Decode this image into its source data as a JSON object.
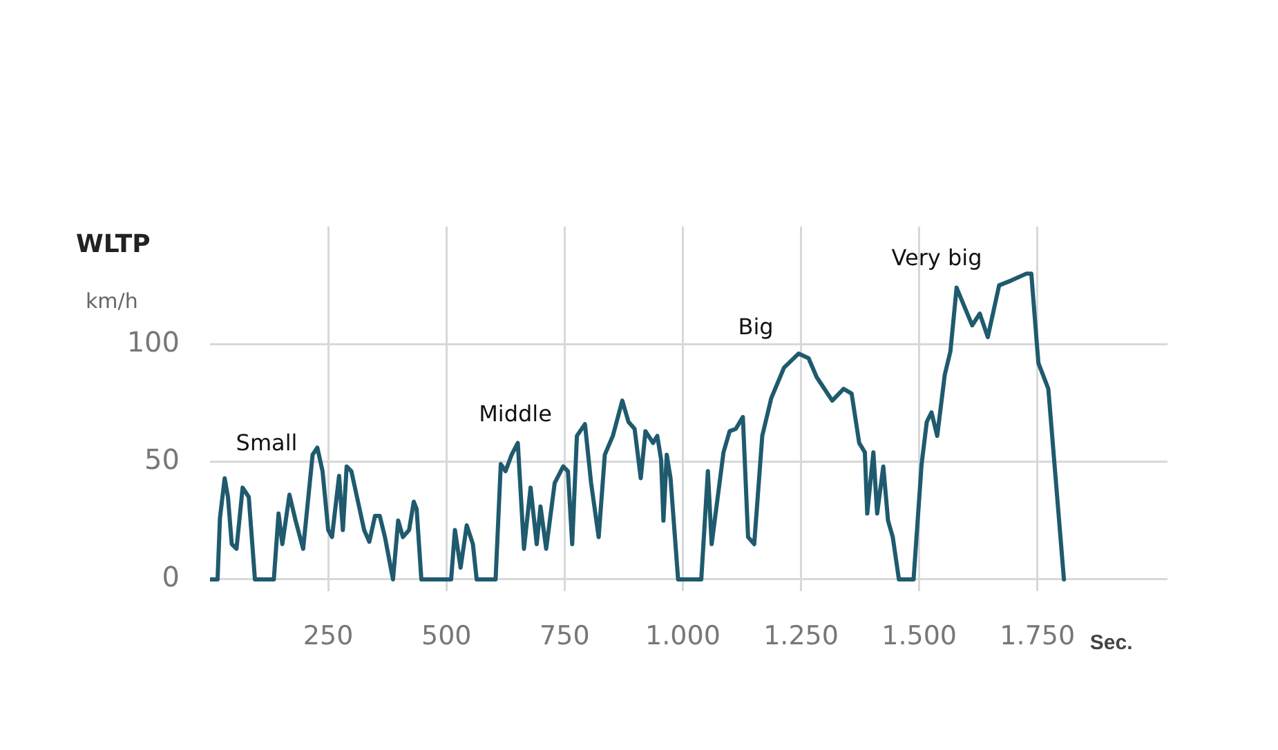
{
  "chart_data": {
    "type": "line",
    "title": "WLTP",
    "ylabel": "km/h",
    "xlabel": "Sec.",
    "x": [
      0,
      16,
      21,
      31,
      38,
      46,
      56,
      69,
      82,
      95,
      135,
      145,
      153,
      168,
      181,
      197,
      217,
      227,
      238,
      250,
      258,
      273,
      281,
      289,
      299,
      326,
      337,
      349,
      359,
      370,
      387,
      398,
      408,
      421,
      431,
      437,
      447,
      510,
      518,
      530,
      543,
      556,
      564,
      604,
      615,
      625,
      638,
      651,
      664,
      678,
      691,
      699,
      711,
      729,
      747,
      757,
      766,
      776,
      793,
      806,
      822,
      835,
      852,
      872,
      885,
      898,
      911,
      921,
      937,
      946,
      954,
      959,
      966,
      974,
      990,
      1039,
      1053,
      1061,
      1086,
      1099,
      1112,
      1127,
      1138,
      1151,
      1168,
      1187,
      1214,
      1245,
      1266,
      1283,
      1316,
      1340,
      1357,
      1373,
      1385,
      1390,
      1403,
      1411,
      1424,
      1434,
      1444,
      1457,
      1488,
      1505,
      1516,
      1526,
      1538,
      1554,
      1566,
      1579,
      1612,
      1628,
      1645,
      1669,
      1694,
      1727,
      1737,
      1752,
      1773,
      1806
    ],
    "values": [
      0,
      0,
      26,
      43,
      35,
      15,
      13,
      39,
      35,
      0,
      0,
      28,
      15,
      36,
      25,
      13,
      53,
      56,
      46,
      21,
      18,
      44,
      21,
      48,
      46,
      21,
      16,
      27,
      27,
      18,
      0,
      25,
      18,
      21,
      33,
      30,
      0,
      0,
      21,
      5,
      23,
      15,
      0,
      0,
      49,
      46,
      53,
      58,
      13,
      39,
      15,
      31,
      13,
      41,
      48,
      46,
      15,
      61,
      66,
      41,
      18,
      53,
      61,
      76,
      67,
      64,
      43,
      63,
      58,
      61,
      51,
      25,
      53,
      43,
      0,
      0,
      46,
      15,
      54,
      63,
      64,
      69,
      18,
      15,
      61,
      77,
      90,
      96,
      94,
      86,
      76,
      81,
      79,
      58,
      54,
      28,
      54,
      28,
      48,
      25,
      18,
      0,
      0,
      49,
      67,
      71,
      61,
      87,
      97,
      124,
      108,
      113,
      103,
      125,
      127,
      130,
      130,
      92,
      81,
      0
    ],
    "color": "#1f5a6e",
    "xlim": [
      0,
      2025
    ],
    "ylim": [
      -5,
      150
    ],
    "xticks": [
      {
        "value": 250,
        "label": "250"
      },
      {
        "value": 500,
        "label": "500"
      },
      {
        "value": 750,
        "label": "750"
      },
      {
        "value": 1000,
        "label": "1.000"
      },
      {
        "value": 1250,
        "label": "1.250"
      },
      {
        "value": 1500,
        "label": "1.500"
      },
      {
        "value": 1750,
        "label": "1.750"
      }
    ],
    "yticks": [
      0,
      50,
      100
    ],
    "grid": true,
    "legend": false,
    "marker": "none",
    "line_style": "solid",
    "annotations": [
      "Small",
      "Middle",
      "Big",
      "Very big"
    ]
  }
}
